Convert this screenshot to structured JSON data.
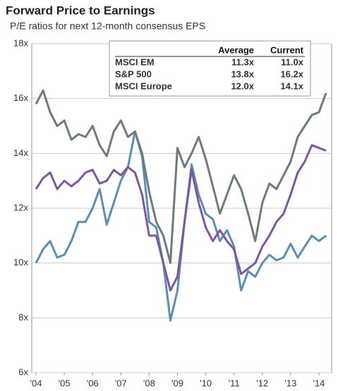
{
  "chart_data": {
    "type": "line",
    "title": "Forward Price to Earnings",
    "subtitle": "P/E ratios for next 12-month consensus EPS",
    "table_headers": [
      "Average",
      "Current"
    ],
    "x": [
      2004,
      2004.25,
      2004.5,
      2004.75,
      2005,
      2005.25,
      2005.5,
      2005.75,
      2006,
      2006.25,
      2006.5,
      2006.75,
      2007,
      2007.25,
      2007.5,
      2007.75,
      2008,
      2008.25,
      2008.5,
      2008.75,
      2009,
      2009.25,
      2009.5,
      2009.75,
      2010,
      2010.25,
      2010.5,
      2010.75,
      2011,
      2011.25,
      2011.5,
      2011.75,
      2012,
      2012.25,
      2012.5,
      2012.75,
      2013,
      2013.25,
      2013.5,
      2013.75,
      2014,
      2014.25
    ],
    "series": [
      {
        "name": "MSCI EM",
        "color": "#5b8db8",
        "average": "11.3x",
        "current": "11.0x",
        "values": [
          10.0,
          10.5,
          10.8,
          10.2,
          10.3,
          10.8,
          11.5,
          11.5,
          12.0,
          12.7,
          11.4,
          12.2,
          13.0,
          13.5,
          14.8,
          13.9,
          11.5,
          11.3,
          10.0,
          7.9,
          9.0,
          11.5,
          13.6,
          12.5,
          11.8,
          11.6,
          10.8,
          11.2,
          10.6,
          9.0,
          9.7,
          9.5,
          10.0,
          10.3,
          10.1,
          10.2,
          10.7,
          10.2,
          10.6,
          11.0,
          10.8,
          11.0
        ]
      },
      {
        "name": "S&P 500",
        "color": "#6d7b7b",
        "average": "13.8x",
        "current": "16.2x",
        "values": [
          15.8,
          16.3,
          15.5,
          15.0,
          15.2,
          14.5,
          14.7,
          14.6,
          15.0,
          14.3,
          13.9,
          14.8,
          15.2,
          14.6,
          14.8,
          14.0,
          12.6,
          11.5,
          11.0,
          10.0,
          14.2,
          13.5,
          14.0,
          14.6,
          13.8,
          12.8,
          11.8,
          12.5,
          13.2,
          12.7,
          11.8,
          10.8,
          12.2,
          12.9,
          12.7,
          13.2,
          13.7,
          14.6,
          15.0,
          15.4,
          15.5,
          16.2
        ]
      },
      {
        "name": "MSCI Europe",
        "color": "#7d57a3",
        "average": "12.0x",
        "current": "14.1x",
        "values": [
          12.7,
          13.1,
          13.3,
          12.7,
          13.0,
          12.8,
          13.0,
          13.3,
          13.4,
          12.9,
          13.0,
          13.4,
          13.2,
          13.5,
          13.3,
          12.5,
          11.0,
          11.0,
          10.0,
          9.0,
          9.5,
          11.5,
          13.4,
          12.2,
          11.3,
          10.8,
          11.2,
          10.8,
          10.5,
          9.6,
          9.8,
          10.0,
          10.6,
          11.0,
          11.5,
          11.8,
          12.5,
          13.3,
          13.7,
          14.3,
          14.2,
          14.1
        ]
      }
    ],
    "xlim": [
      2003.85,
      2014.45
    ],
    "xticks": [
      {
        "value": 2004,
        "label": "'04"
      },
      {
        "value": 2005,
        "label": "'05"
      },
      {
        "value": 2006,
        "label": "'06"
      },
      {
        "value": 2007,
        "label": "'07"
      },
      {
        "value": 2008,
        "label": "'08"
      },
      {
        "value": 2009,
        "label": "'09"
      },
      {
        "value": 2010,
        "label": "'10"
      },
      {
        "value": 2011,
        "label": "'11"
      },
      {
        "value": 2012,
        "label": "'12"
      },
      {
        "value": 2013,
        "label": "'13"
      },
      {
        "value": 2014,
        "label": "'14"
      }
    ],
    "ylim": [
      6,
      18
    ],
    "yticks": [
      {
        "value": 6,
        "label": "6x"
      },
      {
        "value": 8,
        "label": "8x"
      },
      {
        "value": 10,
        "label": "10x"
      },
      {
        "value": 12,
        "label": "12x"
      },
      {
        "value": 14,
        "label": "14x"
      },
      {
        "value": 16,
        "label": "16x"
      },
      {
        "value": 18,
        "label": "18x"
      }
    ],
    "grid": true
  }
}
